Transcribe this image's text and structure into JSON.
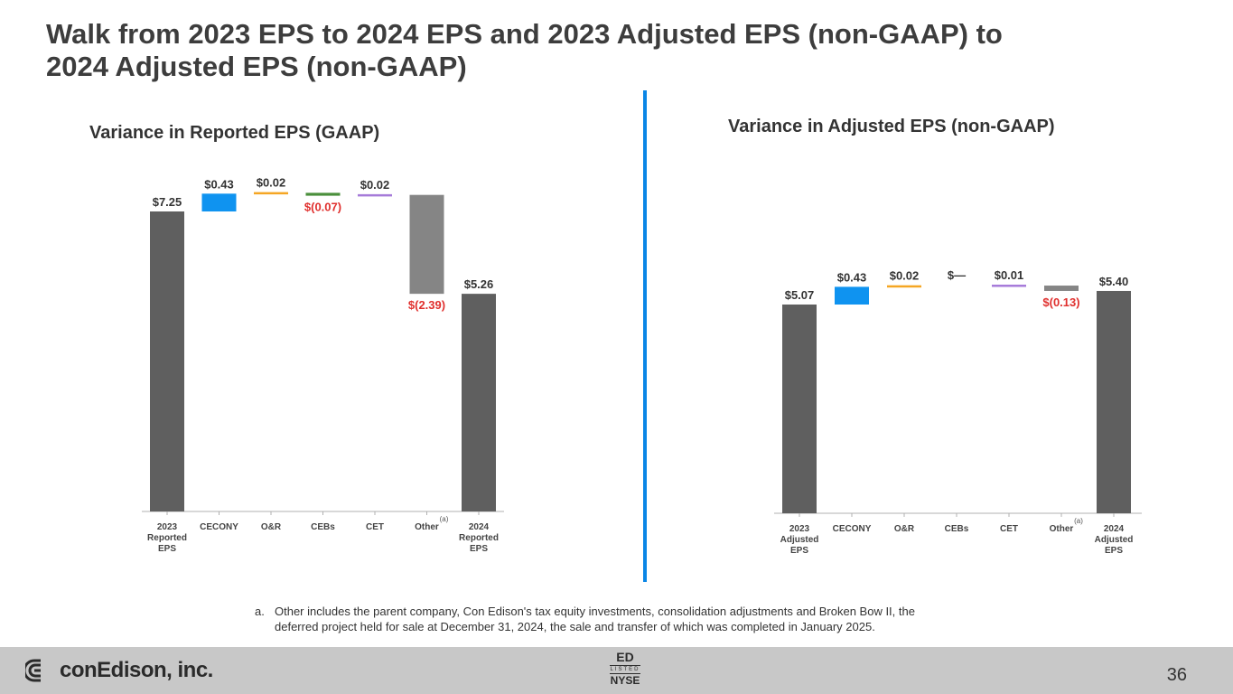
{
  "slide": {
    "title_line1": "Walk from 2023 EPS to 2024 EPS and 2023 Adjusted EPS (non-GAAP) to",
    "title_line2": "2024 Adjusted EPS (non-GAAP)",
    "page_number": "36"
  },
  "colors": {
    "total": "#5f5f5f",
    "cecony": "#0f93f0",
    "or": "#f5a623",
    "cebs": "#4a8f3b",
    "cet": "#a67bd9",
    "other": "#858585",
    "negative_label": "#e0302e",
    "divider": "#0a86e6"
  },
  "chart_data": [
    {
      "type": "bar",
      "subtype": "waterfall",
      "title": "Variance in Reported EPS (GAAP)",
      "unit": "$ per share",
      "categories": [
        "2023 Reported EPS",
        "CECONY",
        "O&R",
        "CEBs",
        "CET",
        "Other",
        "2024 Reported EPS"
      ],
      "category_labels": [
        [
          "2023",
          "Reported",
          "EPS"
        ],
        [
          "CECONY"
        ],
        [
          "O&R"
        ],
        [
          "CEBs"
        ],
        [
          "CET"
        ],
        [
          "Other"
        ],
        [
          "2024",
          "Reported",
          "EPS"
        ]
      ],
      "values": [
        7.25,
        0.43,
        0.02,
        -0.07,
        0.02,
        -2.39,
        5.26
      ],
      "kinds": [
        "total",
        "delta",
        "delta",
        "delta",
        "delta",
        "delta",
        "total"
      ],
      "colors": [
        "total",
        "cecony",
        "or",
        "cebs",
        "cet",
        "other",
        "total"
      ],
      "value_labels": [
        "$7.25",
        "$0.43",
        "$0.02",
        "$(0.07)",
        "$0.02",
        "$(2.39)",
        "$5.26"
      ],
      "footnote_marker_category": "Other",
      "footnote_marker": "(a)",
      "ylim": [
        0,
        7.8
      ]
    },
    {
      "type": "bar",
      "subtype": "waterfall",
      "title": "Variance in Adjusted EPS (non-GAAP)",
      "unit": "$ per share",
      "categories": [
        "2023 Adjusted EPS",
        "CECONY",
        "O&R",
        "CEBs",
        "CET",
        "Other",
        "2024 Adjusted EPS"
      ],
      "category_labels": [
        [
          "2023",
          "Adjusted",
          "EPS"
        ],
        [
          "CECONY"
        ],
        [
          "O&R"
        ],
        [
          "CEBs"
        ],
        [
          "CET"
        ],
        [
          "Other"
        ],
        [
          "2024",
          "Adjusted",
          "EPS"
        ]
      ],
      "values": [
        5.07,
        0.43,
        0.02,
        0,
        0.01,
        -0.13,
        5.4
      ],
      "kinds": [
        "total",
        "delta",
        "delta",
        "delta",
        "delta",
        "delta",
        "total"
      ],
      "colors": [
        "total",
        "cecony",
        "or",
        "cebs",
        "cet",
        "other",
        "total"
      ],
      "value_labels": [
        "$5.07",
        "$0.43",
        "$0.02",
        "$—",
        "$0.01",
        "$(0.13)",
        "$5.40"
      ],
      "footnote_marker_category": "Other",
      "footnote_marker": "(a)",
      "ylim": [
        0,
        5.8
      ]
    }
  ],
  "footnote": {
    "marker": "a.",
    "text": "Other includes the parent company, Con Edison's tax equity investments, consolidation adjustments and Broken Bow II, the deferred project held for sale at December 31, 2024, the sale and transfer of which was completed in January 2025."
  },
  "footer": {
    "company": "conEdison, inc.",
    "ticker": "ED",
    "listed": "LISTED",
    "exchange": "NYSE"
  }
}
